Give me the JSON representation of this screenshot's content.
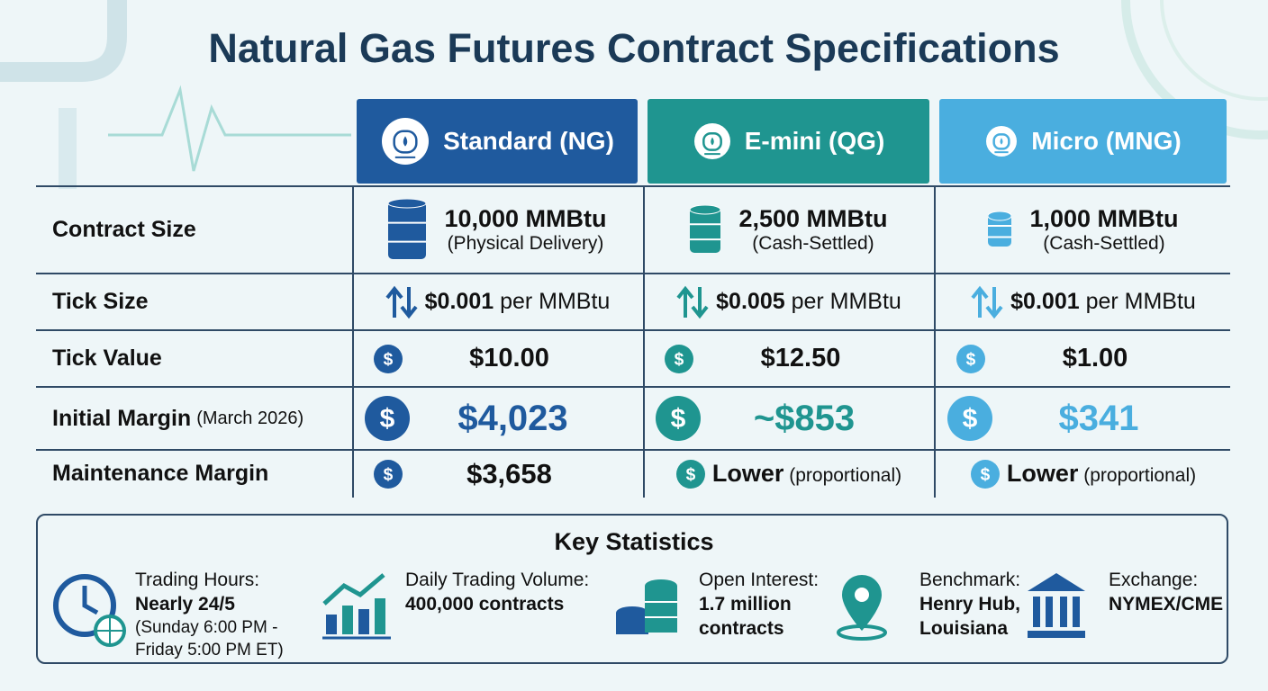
{
  "title": "Natural Gas Futures Contract Specifications",
  "table": {
    "headers": [
      "Standard (NG)",
      "E-mini (QG)",
      "Micro (MNG)"
    ],
    "rows": [
      {
        "label": "Contract Size",
        "cells": [
          {
            "main": "10,000 MMBtu",
            "note": "(Physical Delivery)"
          },
          {
            "main": "2,500 MMBtu",
            "note": "(Cash-Settled)"
          },
          {
            "main": "1,000 MMBtu",
            "note": "(Cash-Settled)"
          }
        ]
      },
      {
        "label": "Tick Size",
        "cells": [
          {
            "main": "$0.001",
            "note": "per MMBtu"
          },
          {
            "main": "$0.005",
            "note": "per MMBtu"
          },
          {
            "main": "$0.001",
            "note": "per MMBtu"
          }
        ]
      },
      {
        "label": "Tick Value",
        "cells": [
          {
            "main": "$10.00"
          },
          {
            "main": "$12.50"
          },
          {
            "main": "$1.00"
          }
        ]
      },
      {
        "label": "Initial Margin",
        "label_note": "(March 2026)",
        "cells": [
          {
            "main": "$4,023"
          },
          {
            "main": "~$853"
          },
          {
            "main": "$341"
          }
        ]
      },
      {
        "label": "Maintenance Margin",
        "cells": [
          {
            "main": "$3,658"
          },
          {
            "main": "Lower",
            "note": "(proportional)"
          },
          {
            "main": "Lower",
            "note": "(proportional)"
          }
        ]
      }
    ]
  },
  "key_statistics": {
    "title": "Key Statistics",
    "items": [
      {
        "label": "Trading Hours:",
        "value": "Nearly 24/5",
        "note": "(Sunday 6:00 PM - Friday 5:00 PM ET)"
      },
      {
        "label": "Daily Trading Volume:",
        "value": "400,000 contracts"
      },
      {
        "label": "Open Interest:",
        "value": "1.7 million contracts"
      },
      {
        "label": "Benchmark:",
        "value": "Henry Hub, Louisiana"
      },
      {
        "label": "Exchange:",
        "value": "NYMEX/CME"
      }
    ]
  }
}
